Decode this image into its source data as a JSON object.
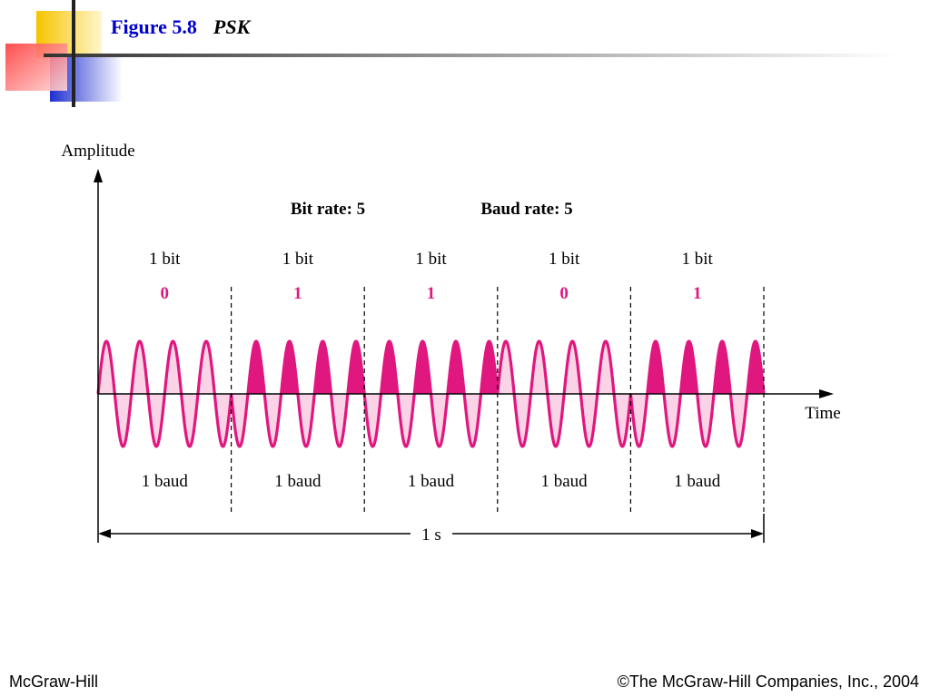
{
  "slide": {
    "figure_label": "Figure 5.8",
    "figure_name": "PSK"
  },
  "axes": {
    "y_label": "Amplitude",
    "x_label": "Time"
  },
  "rates": {
    "bit_rate": "Bit rate: 5",
    "baud_rate": "Baud rate: 5"
  },
  "bits": [
    {
      "label": "1 bit",
      "value": "0",
      "baud": "1 baud"
    },
    {
      "label": "1 bit",
      "value": "1",
      "baud": "1 baud"
    },
    {
      "label": "1 bit",
      "value": "1",
      "baud": "1 baud"
    },
    {
      "label": "1 bit",
      "value": "0",
      "baud": "1 baud"
    },
    {
      "label": "1 bit",
      "value": "1",
      "baud": "1 baud"
    }
  ],
  "duration": "1 s",
  "footer": {
    "publisher": "McGraw-Hill",
    "copyright": "©The McGraw-Hill Companies, Inc., 2004"
  },
  "colors": {
    "wave": "#e0177f",
    "fill_light": "#fbd3e6",
    "fill_dark": "#e0177f",
    "bit_value": "#e0177f",
    "title": "#0000cc"
  }
}
